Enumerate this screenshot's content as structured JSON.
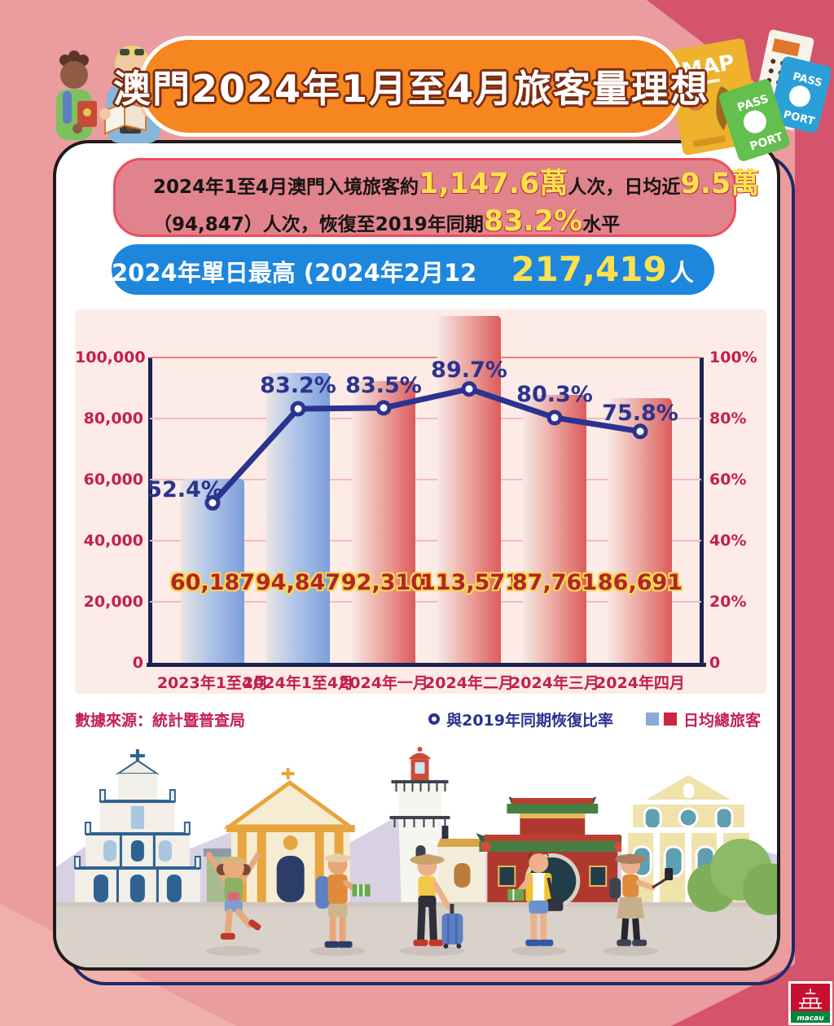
{
  "page": {
    "title": "澳門2024年1月至4月旅客量理想"
  },
  "summary_box": {
    "line1_parts": [
      "2024年1至4月澳門入境旅客約",
      "1,147.6萬",
      "人次，日均近",
      "9.5萬"
    ],
    "line2_parts": [
      "（94,847）人次，恢復至2019年同期",
      "83.2%",
      "水平"
    ]
  },
  "peak_box": {
    "prefix": "2024年單日最高 (2024年2月12日)：",
    "number": "217,419",
    "suffix": "人次"
  },
  "chart_data": {
    "type": "bar+line",
    "categories": [
      "2023年1至4月",
      "2024年1至4月",
      "2024年一月",
      "2024年二月",
      "2024年三月",
      "2024年四月"
    ],
    "series": [
      {
        "name": "日均總旅客",
        "type": "bar",
        "values": [
          60187,
          94847,
          92310,
          113571,
          87761,
          86691
        ],
        "labels": [
          "60,187",
          "94,847",
          "92,310",
          "113,571",
          "87,761",
          "86,691"
        ],
        "colors": [
          "blue",
          "blue",
          "red",
          "red",
          "red",
          "red"
        ]
      },
      {
        "name": "與2019年同期恢復比率",
        "type": "line",
        "values_pct": [
          52.4,
          83.2,
          83.5,
          89.7,
          80.3,
          75.8
        ],
        "labels": [
          "52.4%",
          "83.2%",
          "83.5%",
          "89.7%",
          "80.3%",
          "75.8%"
        ]
      }
    ],
    "left_axis": {
      "ticks": [
        "0",
        "20,000",
        "40,000",
        "60,000",
        "80,000",
        "100,000"
      ],
      "max": 100000
    },
    "right_axis": {
      "ticks": [
        "0",
        "20%",
        "40%",
        "60%",
        "80%",
        "100%"
      ],
      "max": 100
    },
    "grid": true,
    "legend_position": "bottom-right"
  },
  "legend": {
    "line_label": "與2019年同期恢復比率",
    "bar_label": "日均總旅客"
  },
  "source": "數據來源：統計暨普查局",
  "decor": {
    "map_label": "MAP",
    "passport_top": "PASS",
    "passport_bottom": "PORT"
  },
  "logo": {
    "text": "macau"
  },
  "colors": {
    "banner_orange": "#f6861f",
    "crimson": "#c41e50",
    "line_navy": "#2b338f",
    "bar_blue": "#7c9edb",
    "bar_red": "#dd5f5e",
    "highlight_yellow": "#ffe14d",
    "summary_rose": "#e0838d",
    "peak_blue": "#1d86dd",
    "panel_pink": "#fcebe7"
  }
}
